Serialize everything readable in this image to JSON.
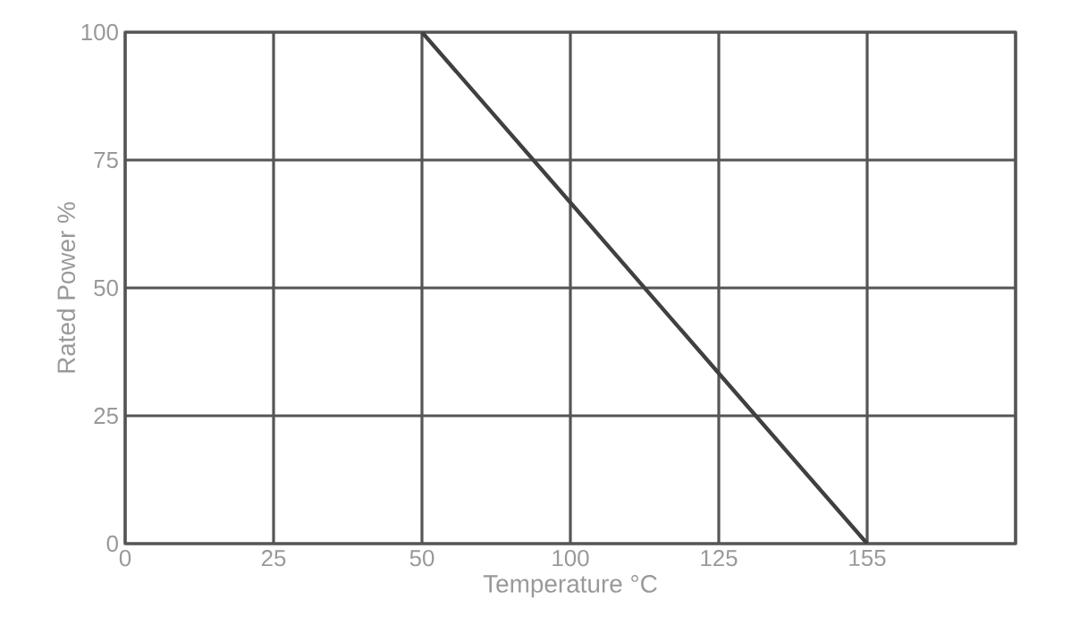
{
  "chart_data": {
    "type": "line",
    "xlabel": "Temperature °C",
    "ylabel": "Rated Power %",
    "categories": [
      "0",
      "25",
      "50",
      "100",
      "125",
      "155",
      null
    ],
    "series": [
      {
        "color": "#404040",
        "values": [
          null,
          null,
          100,
          66.7,
          33.3,
          0,
          null
        ]
      }
    ],
    "ylim": [
      0,
      100
    ],
    "yticks": [
      0,
      25,
      50,
      75,
      100
    ],
    "grid": true,
    "marker": "none",
    "line_style": "solid"
  }
}
